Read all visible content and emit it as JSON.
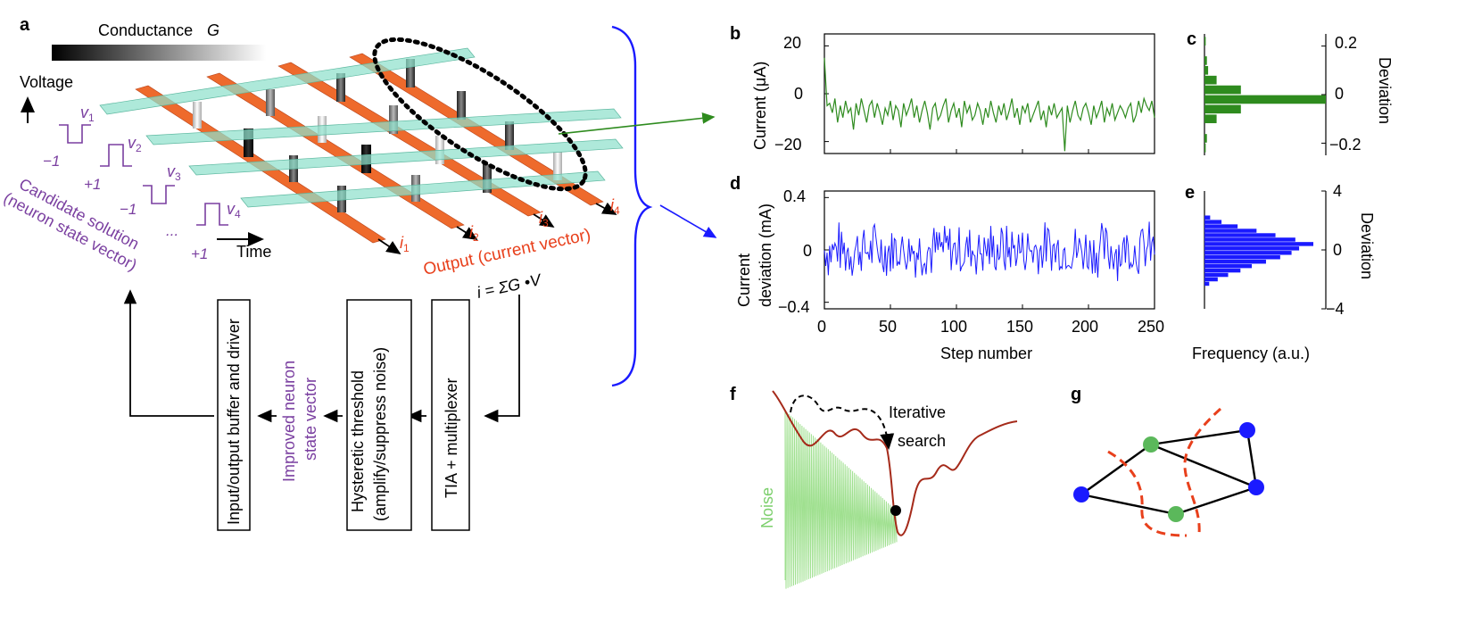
{
  "panel_a": {
    "label": "a",
    "conductance_label": "Conductance",
    "conductance_symbol": "G",
    "voltage_label": "Voltage",
    "time_label": "Time",
    "voltages": [
      "v",
      "v",
      "v",
      "v"
    ],
    "voltage_subs": [
      "1",
      "2",
      "3",
      "4"
    ],
    "pulse_signs": [
      "−1",
      "+1",
      "−1",
      "...",
      "+1"
    ],
    "candidate_line1": "Candidate solution",
    "candidate_line2": "(neuron state vector)",
    "currents": [
      "i",
      "i",
      "i",
      "i"
    ],
    "current_subs": [
      "1",
      "2",
      "3",
      "4"
    ],
    "output_label": "Output (current vector)",
    "formula": "i = ΣG •V",
    "formula_sub_j": "j",
    "formula_sub_ij": "ij",
    "formula_sub_i": "i",
    "box_tia": "TIA + multiplexer",
    "box_threshold_line1": "Hysteretic threshold",
    "box_threshold_line2": "(amplify/suppress noise)",
    "improved_line1": "Improved neuron",
    "improved_line2": "state vector",
    "box_io": "Input/output buffer and driver"
  },
  "panel_b": {
    "label": "b",
    "ylabel": "Current (μA)",
    "yticks": [
      "20",
      "0",
      "−20"
    ]
  },
  "panel_c": {
    "label": "c",
    "ylabel": "Deviation",
    "yticks": [
      "0.2",
      "0",
      "−0.2"
    ]
  },
  "panel_d": {
    "label": "d",
    "ylabel_line1": "Current",
    "ylabel_line2": "deviation (mA)",
    "yticks": [
      "0.4",
      "0",
      "−0.4"
    ],
    "xticks": [
      "0",
      "50",
      "100",
      "150",
      "200",
      "250"
    ],
    "xlabel": "Step number"
  },
  "panel_e": {
    "label": "e",
    "ylabel": "Deviation",
    "yticks": [
      "4",
      "0",
      "−4"
    ],
    "xlabel": "Frequency (a.u.)"
  },
  "panel_f": {
    "label": "f",
    "search_line1": "Iterative",
    "search_line2": "search",
    "noise_label": "Noise"
  },
  "panel_g": {
    "label": "g"
  },
  "colors": {
    "green_trace": "#2e8b1e",
    "blue_trace": "#1a1aff",
    "orange_bar": "#ee6a2c",
    "teal_bar": "#8fe0cc",
    "purple_text": "#7a3fa0",
    "red_curve": "#a52a1a",
    "noise_green": "#9fe08f"
  },
  "chart_data": [
    {
      "type": "line",
      "panel": "b",
      "xlim": [
        0,
        250
      ],
      "ylim": [
        -25,
        25
      ],
      "ylabel": "Current (μA)",
      "x_start": 0,
      "x_step": 2,
      "values": [
        15,
        -5,
        -4,
        -8,
        -2,
        -12,
        -5,
        -10,
        -3,
        -8,
        -6,
        -15,
        -4,
        -9,
        -2,
        -7,
        -12,
        -5,
        -3,
        -10,
        -4,
        -8,
        -13,
        -6,
        -9,
        -3,
        -11,
        -5,
        -7,
        -14,
        -4,
        -9,
        -6,
        -2,
        -10,
        -5,
        -12,
        -7,
        -3,
        -8,
        -15,
        -6,
        -4,
        -11,
        -9,
        -5,
        -2,
        -12,
        -7,
        -4,
        -10,
        -6,
        -14,
        -3,
        -8,
        -5,
        -11,
        -9,
        -4,
        -7,
        -13,
        -6,
        -10,
        -3,
        -8,
        -12,
        -5,
        -9,
        -4,
        -11,
        -7,
        -2,
        -10,
        -6,
        -13,
        -5,
        -8,
        -4,
        -12,
        -9,
        -6,
        -3,
        -11,
        -7,
        -14,
        -5,
        -9,
        -4,
        -10,
        -8,
        -6,
        -24,
        -5,
        -12,
        -7,
        -3,
        -9,
        -11,
        -6,
        -4,
        -8,
        -13,
        -5,
        -10,
        -7,
        -3,
        -12,
        -6,
        -9,
        -4,
        -11,
        -8,
        -5,
        -7,
        -10,
        -6,
        -4,
        -12,
        -9,
        -3,
        -8,
        -2,
        -5,
        -7,
        -3,
        -10
      ]
    },
    {
      "type": "bar",
      "panel": "c",
      "orientation": "horizontal",
      "ylabel": "Deviation",
      "ylim": [
        -0.25,
        0.25
      ],
      "bins": [
        0.22,
        0.18,
        0.14,
        0.1,
        0.06,
        0.02,
        -0.02,
        -0.06,
        -0.1,
        -0.14,
        -0.18,
        -0.22
      ],
      "values": [
        1,
        0,
        2,
        3,
        10,
        30,
        100,
        30,
        10,
        0,
        2,
        1
      ]
    },
    {
      "type": "line",
      "panel": "d",
      "xlim": [
        0,
        250
      ],
      "ylim": [
        -0.45,
        0.45
      ],
      "ylabel": "Current deviation (mA)",
      "xlabel": "Step number",
      "x_start": 0,
      "x_step": 1,
      "seed": 7,
      "amplitude": 0.22
    },
    {
      "type": "bar",
      "panel": "e",
      "orientation": "horizontal",
      "ylabel": "Deviation",
      "xlabel": "Frequency (a.u.)",
      "ylim": [
        -4,
        4
      ],
      "bins": [
        2.2,
        1.9,
        1.6,
        1.3,
        1.0,
        0.7,
        0.4,
        0.1,
        -0.2,
        -0.5,
        -0.8,
        -1.1,
        -1.4,
        -1.7,
        -2.0,
        -2.3
      ],
      "values": [
        6,
        18,
        35,
        55,
        75,
        96,
        115,
        100,
        92,
        80,
        65,
        50,
        38,
        25,
        14,
        5
      ]
    }
  ]
}
